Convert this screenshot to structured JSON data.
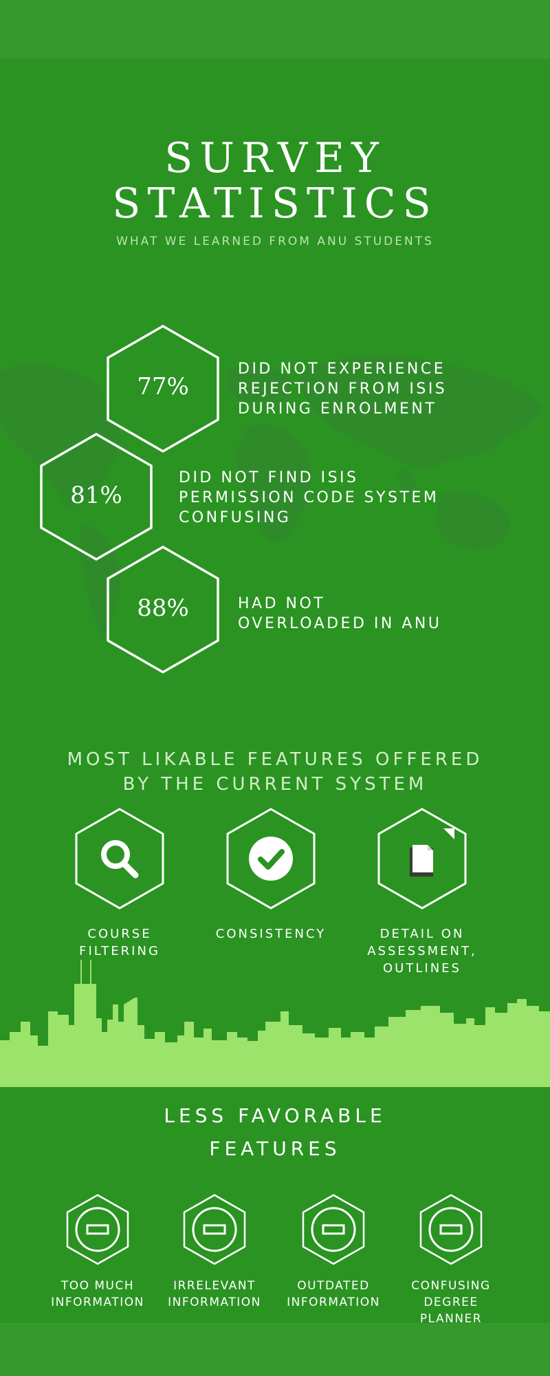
{
  "header": {
    "title_line1": "SURVEY",
    "title_line2": "STATISTICS",
    "subtitle": "WHAT WE LEARNED FROM ANU STUDENTS"
  },
  "stats": [
    {
      "value": "77%",
      "lines": [
        "DID NOT EXPERIENCE",
        "REJECTION FROM ISIS",
        "DURING ENROLMENT"
      ]
    },
    {
      "value": "81%",
      "lines": [
        "DID NOT FIND ISIS",
        "PERMISSION CODE SYSTEM",
        "CONFUSING"
      ]
    },
    {
      "value": "88%",
      "lines": [
        "HAD NOT",
        "OVERLOADED IN ANU"
      ]
    }
  ],
  "likable": {
    "heading_line1": "MOST LIKABLE FEATURES OFFERED",
    "heading_line2": "BY THE CURRENT SYSTEM",
    "features": [
      {
        "icon": "search-icon",
        "lines": [
          "COURSE",
          "FILTERING"
        ]
      },
      {
        "icon": "check-circle-icon",
        "lines": [
          "CONSISTENCY"
        ]
      },
      {
        "icon": "document-icon",
        "lines": [
          "DETAIL ON",
          "ASSESSMENT,",
          "OUTLINES"
        ]
      }
    ]
  },
  "less_favorable": {
    "heading_line1": "LESS FAVORABLE",
    "heading_line2": "FEATURES",
    "features": [
      {
        "icon": "minus-circle-icon",
        "lines": [
          "TOO MUCH",
          "INFORMATION"
        ]
      },
      {
        "icon": "minus-circle-icon",
        "lines": [
          "IRRELEVANT",
          "INFORMATION"
        ]
      },
      {
        "icon": "minus-circle-icon",
        "lines": [
          "OUTDATED",
          "INFORMATION"
        ]
      },
      {
        "icon": "minus-circle-icon",
        "lines": [
          "CONFUSING",
          "DEGREE",
          "PLANNER"
        ]
      }
    ]
  },
  "colors": {
    "background": "#2a9322",
    "band": "#36992d",
    "skyline": "#9be36a",
    "map": "#2f8b2a",
    "text": "#ffffff"
  }
}
